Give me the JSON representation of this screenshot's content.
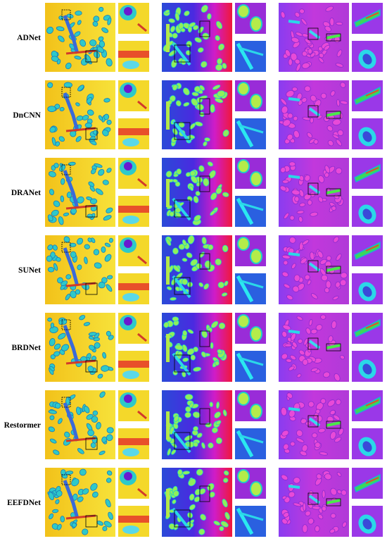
{
  "methods": [
    {
      "label": "ADNet"
    },
    {
      "label": "DnCNN"
    },
    {
      "label": "DRANet"
    },
    {
      "label": "SUNet"
    },
    {
      "label": "BRDNet"
    },
    {
      "label": "Restormer"
    },
    {
      "label": "EEFDNet"
    }
  ],
  "colormaps": {
    "jet_yellow": {
      "bg": "#f6d51e",
      "blob": "#2ec9c9",
      "accent": "#d23a2a"
    },
    "jet_blue": {
      "bg": "#3140d8",
      "bg2": "#e0168a",
      "blob": "#3fe89a",
      "accent": "#c9e43c"
    },
    "magenta": {
      "bg": "#c838d8",
      "bg2": "#6a3cf0",
      "blob": "#ff4fe0",
      "accent": "#2ad8d8"
    }
  }
}
